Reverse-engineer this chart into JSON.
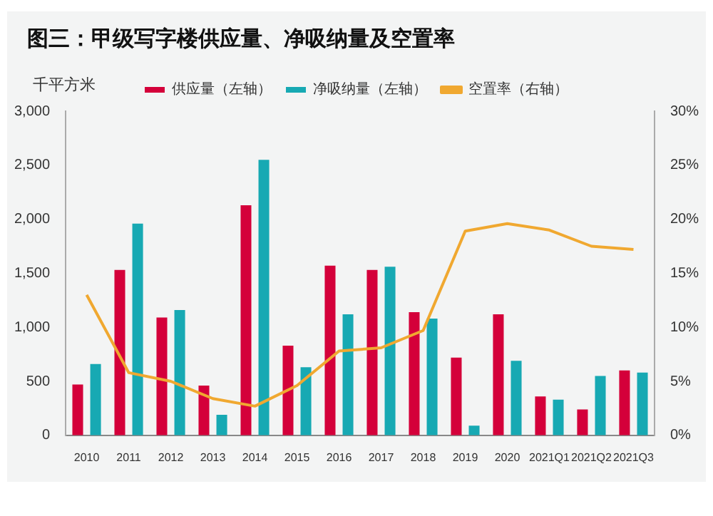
{
  "chart_data": {
    "type": "bar",
    "title": "图三：甲级写字楼供应量、净吸纳量及空置率",
    "ylabel": "千平方米",
    "categories": [
      "2010",
      "2011",
      "2012",
      "2013",
      "2014",
      "2015",
      "2016",
      "2017",
      "2018",
      "2019",
      "2020",
      "2021Q1",
      "2021Q2",
      "2021Q3"
    ],
    "series": [
      {
        "name": "供应量（左轴）",
        "color": "#d4003a",
        "values": [
          470,
          1530,
          1090,
          460,
          2130,
          830,
          1570,
          1530,
          1140,
          720,
          1120,
          360,
          240,
          600
        ]
      },
      {
        "name": "净吸纳量（左轴）",
        "color": "#17a9b3",
        "values": [
          660,
          1960,
          1160,
          190,
          2550,
          630,
          1120,
          1560,
          1080,
          90,
          690,
          330,
          550,
          580
        ]
      },
      {
        "name": "空置率（右轴）",
        "type": "line",
        "axis": "y2",
        "color": "#f0a830",
        "values": [
          13,
          5.8,
          5.0,
          3.4,
          2.7,
          4.6,
          7.8,
          8.1,
          9.7,
          18.9,
          19.6,
          19.0,
          17.5,
          17.2
        ]
      }
    ],
    "ylim": [
      0,
      3000
    ],
    "yticks": [
      0,
      500,
      {
        "value": 1000,
        "label": "1,000"
      },
      {
        "value": 1500,
        "label": "1,500"
      },
      {
        "value": 2000,
        "label": "2,000"
      },
      {
        "value": 2500,
        "label": "2,500"
      },
      {
        "value": 3000,
        "label": "3,000"
      }
    ],
    "y2lim": [
      0,
      30
    ],
    "y2ticks": [
      {
        "value": 0,
        "label": "0%"
      },
      {
        "value": 5,
        "label": "5%"
      },
      {
        "value": 10,
        "label": "10%"
      },
      {
        "value": 15,
        "label": "15%"
      },
      {
        "value": 20,
        "label": "20%"
      },
      {
        "value": 25,
        "label": "25%"
      },
      {
        "value": 30,
        "label": "30%"
      }
    ],
    "legend": "top",
    "grid": false,
    "marker": "none"
  }
}
